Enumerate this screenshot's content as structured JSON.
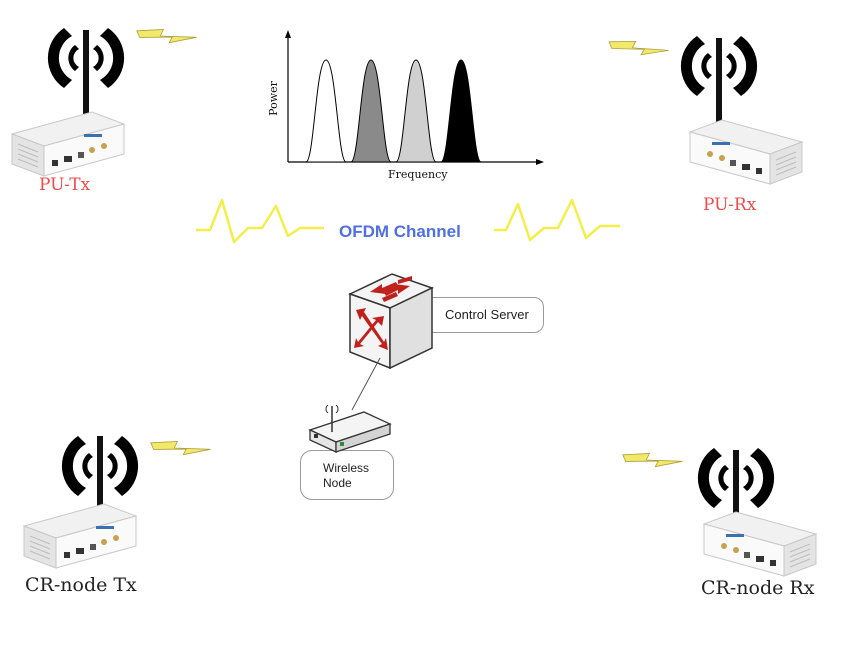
{
  "nodes": {
    "pu_tx": "PU-Tx",
    "pu_rx": "PU-Rx",
    "cr_tx": "CR-node Tx",
    "cr_rx": "CR-node Rx"
  },
  "channel_label": "OFDM Channel",
  "spectrum": {
    "xlabel": "Frequency",
    "ylabel": "Power",
    "peaks": [
      {
        "fill": "#ffffff"
      },
      {
        "fill": "#8a8a8a"
      },
      {
        "fill": "#d0d0d0"
      },
      {
        "fill": "#000000"
      }
    ]
  },
  "control_server": "Control Server",
  "wireless_node": "Wireless\nNode"
}
